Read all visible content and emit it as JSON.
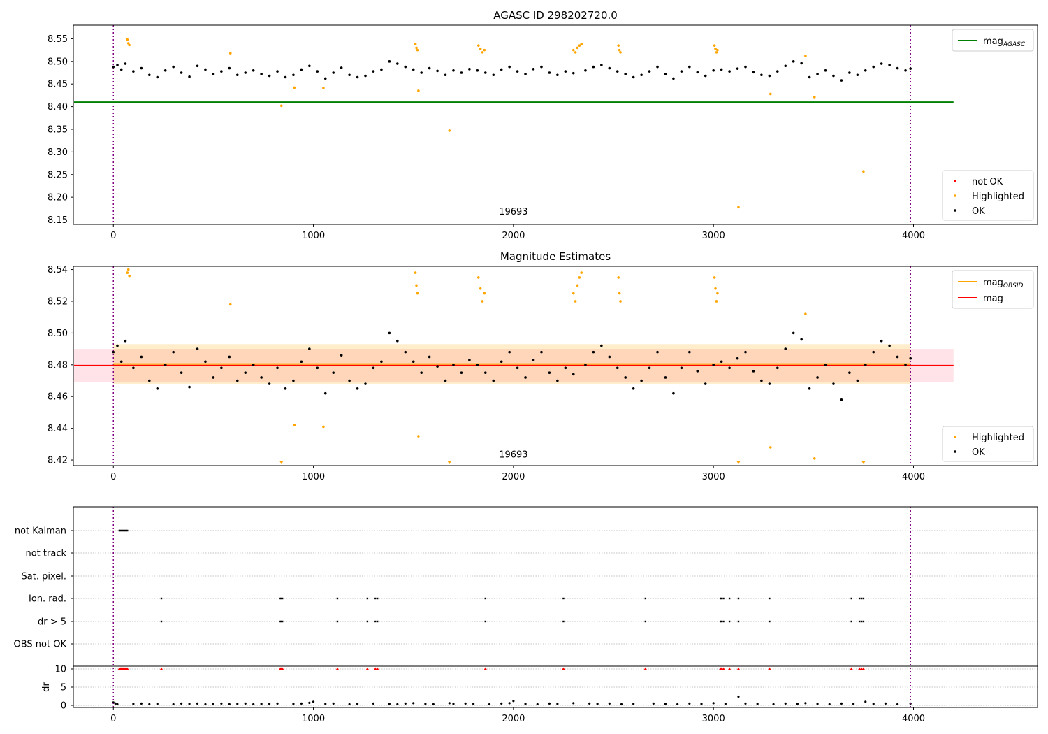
{
  "figure": {
    "background": "#ffffff"
  },
  "chart_data": [
    {
      "type": "scatter",
      "title": "AGASC ID 298202720.0",
      "xlim": [
        -200,
        4620
      ],
      "ylim": [
        8.14,
        8.58
      ],
      "xticks": [
        0,
        1000,
        2000,
        3000,
        4000
      ],
      "yticks": [
        8.15,
        8.2,
        8.25,
        8.3,
        8.35,
        8.4,
        8.45,
        8.5,
        8.55
      ],
      "ytick_decimals": 2,
      "obs_label": {
        "x": 2000,
        "y": 8.162,
        "text": "19693"
      },
      "vlines": [
        {
          "x": 0,
          "color": "#800080"
        },
        {
          "x": 3985,
          "color": "#800080"
        }
      ],
      "hlines": [
        {
          "name": "mag_agasc",
          "y": 8.41,
          "x0": -200,
          "x1": 4200,
          "color": "#008000"
        }
      ],
      "line_legend": {
        "position": "upper right",
        "entries": [
          {
            "label": "mag",
            "sub": "AGASC",
            "color": "#008000"
          }
        ]
      },
      "point_legend": {
        "position": "lower right",
        "entries": [
          {
            "label": "not OK",
            "color": "#ff0000"
          },
          {
            "label": "Highlighted",
            "color": "#ffa500"
          },
          {
            "label": "OK",
            "color": "#000000"
          }
        ]
      },
      "series": [
        {
          "name": "OK",
          "color": "#000000",
          "x": [
            0,
            20,
            40,
            60,
            100,
            140,
            180,
            220,
            260,
            300,
            340,
            380,
            420,
            460,
            500,
            540,
            580,
            620,
            660,
            700,
            740,
            780,
            820,
            860,
            900,
            940,
            980,
            1020,
            1060,
            1100,
            1140,
            1180,
            1220,
            1260,
            1300,
            1340,
            1380,
            1420,
            1460,
            1500,
            1540,
            1580,
            1620,
            1660,
            1700,
            1740,
            1780,
            1820,
            1860,
            1900,
            1940,
            1980,
            2020,
            2060,
            2100,
            2140,
            2180,
            2220,
            2260,
            2300,
            2360,
            2400,
            2440,
            2480,
            2520,
            2560,
            2600,
            2640,
            2680,
            2720,
            2760,
            2800,
            2840,
            2880,
            2920,
            2960,
            3000,
            3040,
            3080,
            3120,
            3160,
            3200,
            3240,
            3280,
            3320,
            3360,
            3400,
            3440,
            3480,
            3520,
            3560,
            3600,
            3640,
            3680,
            3720,
            3760,
            3800,
            3840,
            3880,
            3920,
            3960,
            3985
          ],
          "y": [
            8.488,
            8.492,
            8.482,
            8.495,
            8.478,
            8.485,
            8.47,
            8.465,
            8.48,
            8.488,
            8.475,
            8.466,
            8.49,
            8.482,
            8.472,
            8.478,
            8.485,
            8.47,
            8.475,
            8.48,
            8.472,
            8.468,
            8.478,
            8.465,
            8.47,
            8.482,
            8.49,
            8.478,
            8.462,
            8.475,
            8.486,
            8.47,
            8.465,
            8.468,
            8.478,
            8.482,
            8.5,
            8.495,
            8.488,
            8.482,
            8.475,
            8.485,
            8.479,
            8.47,
            8.48,
            8.475,
            8.483,
            8.48,
            8.475,
            8.47,
            8.482,
            8.488,
            8.478,
            8.472,
            8.483,
            8.488,
            8.475,
            8.47,
            8.478,
            8.474,
            8.48,
            8.488,
            8.492,
            8.485,
            8.478,
            8.472,
            8.465,
            8.47,
            8.478,
            8.488,
            8.472,
            8.462,
            8.478,
            8.488,
            8.476,
            8.468,
            8.48,
            8.482,
            8.478,
            8.484,
            8.488,
            8.476,
            8.47,
            8.468,
            8.478,
            8.49,
            8.5,
            8.496,
            8.465,
            8.472,
            8.48,
            8.468,
            8.458,
            8.475,
            8.47,
            8.48,
            8.488,
            8.495,
            8.492,
            8.485,
            8.48,
            8.484
          ]
        },
        {
          "name": "Highlighted",
          "color": "#ffa500",
          "x": [
            70,
            75,
            80,
            585,
            840,
            905,
            1050,
            1510,
            1515,
            1520,
            1525,
            1680,
            1825,
            1835,
            1845,
            1855,
            2300,
            2310,
            2320,
            2330,
            2340,
            2525,
            2530,
            2535,
            3005,
            3010,
            3015,
            3020,
            3285,
            3460,
            3505,
            3750,
            3125
          ],
          "y": [
            8.548,
            8.54,
            8.536,
            8.518,
            8.402,
            8.442,
            8.441,
            8.538,
            8.53,
            8.525,
            8.435,
            8.347,
            8.535,
            8.528,
            8.52,
            8.525,
            8.525,
            8.52,
            8.53,
            8.535,
            8.538,
            8.535,
            8.525,
            8.52,
            8.535,
            8.528,
            8.52,
            8.525,
            8.428,
            8.512,
            8.421,
            8.257,
            8.178
          ]
        }
      ]
    },
    {
      "type": "scatter",
      "title": "Magnitude Estimates",
      "xlim": [
        -200,
        4620
      ],
      "ylim": [
        8.4165,
        8.542
      ],
      "xticks": [
        0,
        1000,
        2000,
        3000,
        4000
      ],
      "yticks": [
        8.42,
        8.44,
        8.46,
        8.48,
        8.5,
        8.52,
        8.54
      ],
      "ytick_decimals": 2,
      "obs_label": {
        "x": 2000,
        "y": 8.4215,
        "text": "19693"
      },
      "vlines": [
        {
          "x": 0,
          "color": "#800080"
        },
        {
          "x": 3985,
          "color": "#800080"
        }
      ],
      "bands": [
        {
          "name": "mag-std-band",
          "y0": 8.469,
          "y1": 8.49,
          "x0": -200,
          "x1": 4200,
          "color": "#ffc0cb",
          "opacity": 0.45
        },
        {
          "name": "obsid-std-band",
          "y0": 8.468,
          "y1": 8.493,
          "x0": 0,
          "x1": 3985,
          "color": "#ffa500",
          "opacity": 0.2
        }
      ],
      "hlines": [
        {
          "name": "mag_obsid",
          "y": 8.4805,
          "x0": 0,
          "x1": 3985,
          "color": "#ffa500"
        },
        {
          "name": "mag",
          "y": 8.4795,
          "x0": -200,
          "x1": 4200,
          "color": "#ff0000"
        }
      ],
      "line_legend": {
        "position": "upper right",
        "entries": [
          {
            "label": "mag",
            "sub": "OBSID",
            "color": "#ffa500"
          },
          {
            "label": "mag",
            "color": "#ff0000"
          }
        ]
      },
      "point_legend": {
        "position": "lower right",
        "entries": [
          {
            "label": "Highlighted",
            "color": "#ffa500"
          },
          {
            "label": "OK",
            "color": "#000000"
          }
        ]
      },
      "triangles": {
        "color": "#ffa500",
        "x": [
          840,
          1680,
          3125,
          3750
        ]
      },
      "series": [
        {
          "name": "OK",
          "color": "#000000",
          "x": [
            0,
            20,
            40,
            60,
            100,
            140,
            180,
            220,
            260,
            300,
            340,
            380,
            420,
            460,
            500,
            540,
            580,
            620,
            660,
            700,
            740,
            780,
            820,
            860,
            900,
            940,
            980,
            1020,
            1060,
            1100,
            1140,
            1180,
            1220,
            1260,
            1300,
            1340,
            1380,
            1420,
            1460,
            1500,
            1540,
            1580,
            1620,
            1660,
            1700,
            1740,
            1780,
            1820,
            1860,
            1900,
            1940,
            1980,
            2020,
            2060,
            2100,
            2140,
            2180,
            2220,
            2260,
            2300,
            2360,
            2400,
            2440,
            2480,
            2520,
            2560,
            2600,
            2640,
            2680,
            2720,
            2760,
            2800,
            2840,
            2880,
            2920,
            2960,
            3000,
            3040,
            3080,
            3120,
            3160,
            3200,
            3240,
            3280,
            3320,
            3360,
            3400,
            3440,
            3480,
            3520,
            3560,
            3600,
            3640,
            3680,
            3720,
            3760,
            3800,
            3840,
            3880,
            3920,
            3960,
            3985
          ],
          "y": [
            8.488,
            8.492,
            8.482,
            8.495,
            8.478,
            8.485,
            8.47,
            8.465,
            8.48,
            8.488,
            8.475,
            8.466,
            8.49,
            8.482,
            8.472,
            8.478,
            8.485,
            8.47,
            8.475,
            8.48,
            8.472,
            8.468,
            8.478,
            8.465,
            8.47,
            8.482,
            8.49,
            8.478,
            8.462,
            8.475,
            8.486,
            8.47,
            8.465,
            8.468,
            8.478,
            8.482,
            8.5,
            8.495,
            8.488,
            8.482,
            8.475,
            8.485,
            8.479,
            8.47,
            8.48,
            8.475,
            8.483,
            8.48,
            8.475,
            8.47,
            8.482,
            8.488,
            8.478,
            8.472,
            8.483,
            8.488,
            8.475,
            8.47,
            8.478,
            8.474,
            8.48,
            8.488,
            8.492,
            8.485,
            8.478,
            8.472,
            8.465,
            8.47,
            8.478,
            8.488,
            8.472,
            8.462,
            8.478,
            8.488,
            8.476,
            8.468,
            8.48,
            8.482,
            8.478,
            8.484,
            8.488,
            8.476,
            8.47,
            8.468,
            8.478,
            8.49,
            8.5,
            8.496,
            8.465,
            8.472,
            8.48,
            8.468,
            8.458,
            8.475,
            8.47,
            8.48,
            8.488,
            8.495,
            8.492,
            8.485,
            8.48,
            8.484
          ]
        },
        {
          "name": "Highlighted",
          "color": "#ffa500",
          "x": [
            70,
            75,
            80,
            585,
            905,
            1050,
            1510,
            1515,
            1520,
            1525,
            1825,
            1835,
            1845,
            1855,
            2300,
            2310,
            2320,
            2330,
            2340,
            2525,
            2530,
            2535,
            3005,
            3010,
            3015,
            3020,
            3285,
            3460,
            3505
          ],
          "y": [
            8.538,
            8.54,
            8.536,
            8.518,
            8.442,
            8.441,
            8.538,
            8.53,
            8.525,
            8.435,
            8.535,
            8.528,
            8.52,
            8.525,
            8.525,
            8.52,
            8.53,
            8.535,
            8.538,
            8.535,
            8.525,
            8.52,
            8.535,
            8.528,
            8.52,
            8.525,
            8.428,
            8.512,
            8.421
          ]
        }
      ]
    },
    {
      "type": "scatter",
      "title": "",
      "xlim": [
        -200,
        4620
      ],
      "xticks": [
        0,
        1000,
        2000,
        3000,
        4000
      ],
      "vlines": [
        {
          "x": 0,
          "color": "#800080"
        },
        {
          "x": 3985,
          "color": "#800080"
        }
      ],
      "flag_categories": [
        "not Kalman",
        "not track",
        "Sat. pixel.",
        "Ion. rad.",
        "dr > 5",
        "OBS not OK"
      ],
      "flags": [
        {
          "name": "not Kalman",
          "x": [
            30,
            35,
            40,
            45,
            50,
            55,
            60,
            65,
            70
          ]
        },
        {
          "name": "not track",
          "x": []
        },
        {
          "name": "Sat. pixel.",
          "x": []
        },
        {
          "name": "Ion. rad.",
          "x": [
            240,
            835,
            840,
            845,
            1120,
            1270,
            1310,
            1320,
            1860,
            2250,
            2660,
            3035,
            3040,
            3050,
            3080,
            3125,
            3280,
            3690,
            3730,
            3740,
            3750
          ]
        },
        {
          "name": "dr > 5",
          "x": [
            240,
            835,
            840,
            845,
            1120,
            1270,
            1310,
            1320,
            1860,
            2250,
            2660,
            3035,
            3040,
            3050,
            3080,
            3125,
            3280,
            3690,
            3730,
            3740,
            3750
          ]
        },
        {
          "name": "OBS not OK",
          "x": []
        }
      ],
      "dr": {
        "ylabel": "dr",
        "ylim": [
          0,
          10
        ],
        "yticks": [
          0,
          5,
          10
        ],
        "capped_color": "#ff0000",
        "capped_x": [
          30,
          35,
          40,
          45,
          50,
          55,
          60,
          65,
          70,
          240,
          835,
          840,
          845,
          1120,
          1270,
          1310,
          1320,
          1860,
          2250,
          2660,
          3035,
          3040,
          3050,
          3080,
          3125,
          3280,
          3690,
          3730,
          3740,
          3750
        ],
        "points_x": [
          0,
          10,
          20,
          100,
          140,
          180,
          220,
          300,
          340,
          380,
          420,
          460,
          500,
          540,
          580,
          620,
          660,
          700,
          740,
          780,
          820,
          900,
          940,
          980,
          1000,
          1060,
          1100,
          1180,
          1220,
          1300,
          1380,
          1420,
          1460,
          1500,
          1560,
          1600,
          1680,
          1700,
          1760,
          1800,
          1880,
          1940,
          1980,
          2000,
          2060,
          2120,
          2180,
          2220,
          2300,
          2380,
          2420,
          2480,
          2540,
          2600,
          2700,
          2760,
          2820,
          2880,
          2940,
          3000,
          3060,
          3125,
          3160,
          3220,
          3300,
          3360,
          3420,
          3460,
          3520,
          3580,
          3640,
          3700,
          3760,
          3800,
          3860,
          3920,
          3985
        ],
        "points_y": [
          0.8,
          0.5,
          0.3,
          0.4,
          0.5,
          0.3,
          0.4,
          0.3,
          0.5,
          0.4,
          0.5,
          0.3,
          0.4,
          0.5,
          0.3,
          0.4,
          0.5,
          0.3,
          0.4,
          0.4,
          0.5,
          0.4,
          0.5,
          0.7,
          1.0,
          0.4,
          0.5,
          0.3,
          0.4,
          0.5,
          0.4,
          0.3,
          0.5,
          0.6,
          0.4,
          0.3,
          0.6,
          0.4,
          0.5,
          0.4,
          0.3,
          0.5,
          0.6,
          1.2,
          0.4,
          0.3,
          0.5,
          0.4,
          0.6,
          0.5,
          0.4,
          0.5,
          0.3,
          0.4,
          0.5,
          0.4,
          0.3,
          0.5,
          0.4,
          0.6,
          0.4,
          2.4,
          0.5,
          0.4,
          0.3,
          0.5,
          0.4,
          0.6,
          0.4,
          0.3,
          0.5,
          0.4,
          1.0,
          0.4,
          0.5,
          0.3,
          0.5
        ]
      }
    }
  ]
}
